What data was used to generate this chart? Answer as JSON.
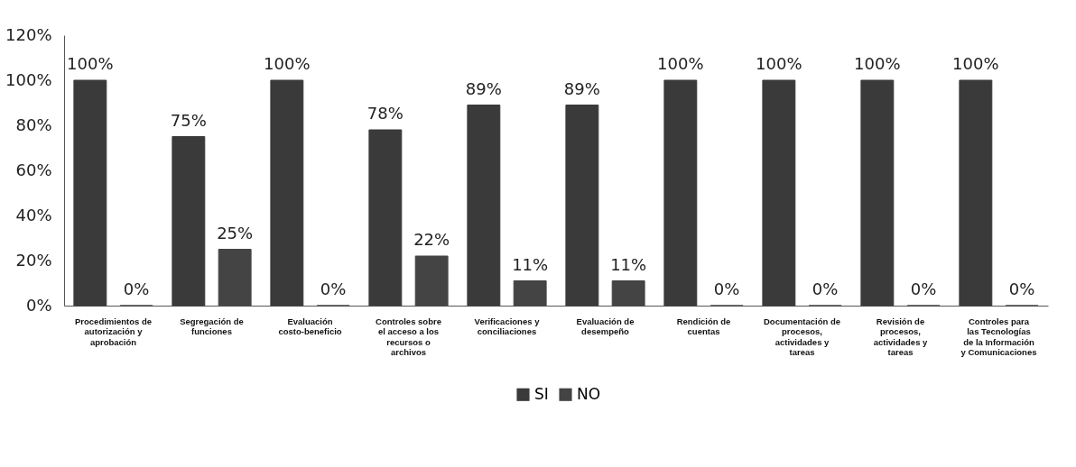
{
  "chart_data": {
    "type": "bar",
    "categories": [
      "Procedimientos de autorización y aprobación",
      "Segregación de funciones",
      "Evaluación costo-beneficio",
      "Controles sobre el acceso a los recursos o archivos",
      "Verificaciones y conciliaciones",
      "Evaluación de desempeño",
      "Rendición de cuentas",
      "Documentación de procesos, actividades y tareas",
      "Revisión de procesos, actividades y tareas",
      "Controles para las Tecnologías de la Información y Comunicaciones"
    ],
    "series": [
      {
        "name": "SI",
        "color": "#3a3a3a",
        "values": [
          100,
          75,
          100,
          78,
          89,
          89,
          100,
          100,
          100,
          100
        ],
        "value_labels": [
          "100%",
          "75%",
          "100%",
          "78%",
          "89%",
          "89%",
          "100%",
          "100%",
          "100%",
          "100%"
        ]
      },
      {
        "name": "NO",
        "color": "#444444",
        "values": [
          0,
          25,
          0,
          22,
          11,
          11,
          0,
          0,
          0,
          0
        ],
        "value_labels": [
          "0%",
          "25%",
          "0%",
          "22%",
          "11%",
          "11%",
          "0%",
          "0%",
          "0%",
          "0%"
        ]
      }
    ],
    "ylim": [
      0,
      120
    ],
    "yticks": [
      {
        "value": 0,
        "label": "0%"
      },
      {
        "value": 20,
        "label": "20%"
      },
      {
        "value": 40,
        "label": "40%"
      },
      {
        "value": 60,
        "label": "60%"
      },
      {
        "value": 80,
        "label": "80%"
      },
      {
        "value": 100,
        "label": "100%"
      },
      {
        "value": 120,
        "label": "120%"
      }
    ],
    "grid": false,
    "legend": "bottom"
  }
}
